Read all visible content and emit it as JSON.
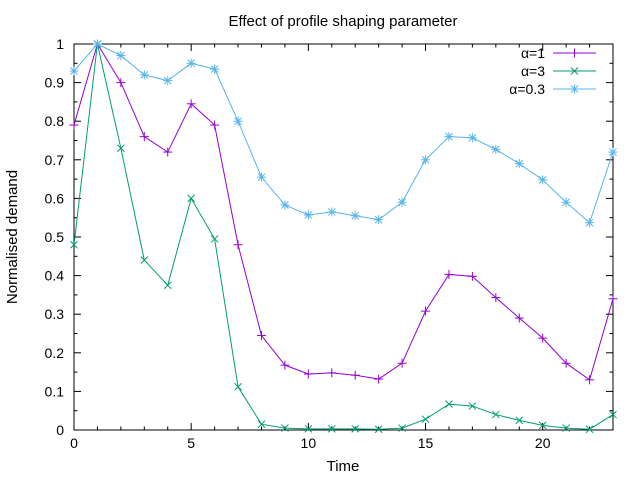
{
  "chart_data": {
    "type": "line",
    "title": "Effect of profile shaping parameter",
    "xlabel": "Time",
    "ylabel": "Normalised demand",
    "xlim": [
      0,
      23
    ],
    "ylim": [
      0,
      1
    ],
    "xticks": [
      0,
      5,
      10,
      15,
      20
    ],
    "yticks": [
      0,
      0.1,
      0.2,
      0.3,
      0.4,
      0.5,
      0.6,
      0.7,
      0.8,
      0.9,
      1
    ],
    "grid": false,
    "legend_position": "top-right",
    "x": [
      0,
      1,
      2,
      3,
      4,
      5,
      6,
      7,
      8,
      9,
      10,
      11,
      12,
      13,
      14,
      15,
      16,
      17,
      18,
      19,
      20,
      21,
      22,
      23
    ],
    "series": [
      {
        "name": "α=1",
        "color": "#9400d3",
        "marker": "plus",
        "values": [
          0.79,
          1.0,
          0.9,
          0.76,
          0.72,
          0.845,
          0.79,
          0.48,
          0.245,
          0.168,
          0.145,
          0.148,
          0.142,
          0.132,
          0.173,
          0.308,
          0.403,
          0.398,
          0.343,
          0.29,
          0.238,
          0.173,
          0.13,
          0.34
        ]
      },
      {
        "name": "α=3",
        "color": "#009e73",
        "marker": "cross",
        "values": [
          0.48,
          1.0,
          0.73,
          0.44,
          0.375,
          0.6,
          0.495,
          0.112,
          0.015,
          0.005,
          0.003,
          0.003,
          0.003,
          0.002,
          0.005,
          0.028,
          0.067,
          0.062,
          0.04,
          0.025,
          0.012,
          0.005,
          0.002,
          0.04
        ]
      },
      {
        "name": "α=0.3",
        "color": "#56b4e9",
        "marker": "star",
        "values": [
          0.93,
          1.0,
          0.97,
          0.92,
          0.905,
          0.95,
          0.935,
          0.8,
          0.655,
          0.583,
          0.557,
          0.565,
          0.555,
          0.545,
          0.59,
          0.7,
          0.76,
          0.757,
          0.727,
          0.69,
          0.648,
          0.59,
          0.537,
          0.72
        ]
      }
    ]
  }
}
